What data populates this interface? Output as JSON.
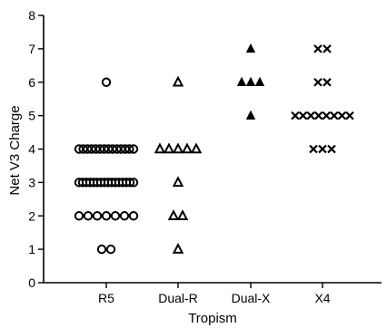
{
  "chart_data": {
    "type": "scatter",
    "title": "",
    "xlabel": "Tropism",
    "ylabel": "Net V3 Charge",
    "ylim": [
      0,
      8
    ],
    "yticks": [
      "0",
      "1",
      "2",
      "3",
      "4",
      "5",
      "6",
      "7",
      "8"
    ],
    "categories": [
      "R5",
      "Dual-R",
      "Dual-X",
      "X4"
    ],
    "grid": false,
    "legend": "none",
    "color": "#000000",
    "series": [
      {
        "category": "R5",
        "marker": "open-circle",
        "points": [
          {
            "y": 6,
            "count": 1
          },
          {
            "y": 4,
            "count": 14
          },
          {
            "y": 3,
            "count": 16
          },
          {
            "y": 2,
            "count": 7
          },
          {
            "y": 1,
            "count": 2
          }
        ]
      },
      {
        "category": "Dual-R",
        "marker": "open-triangle",
        "points": [
          {
            "y": 6,
            "count": 1
          },
          {
            "y": 4,
            "count": 5
          },
          {
            "y": 3,
            "count": 1
          },
          {
            "y": 2,
            "count": 2
          },
          {
            "y": 1,
            "count": 1
          }
        ]
      },
      {
        "category": "Dual-X",
        "marker": "filled-triangle",
        "points": [
          {
            "y": 7,
            "count": 1
          },
          {
            "y": 6,
            "count": 3
          },
          {
            "y": 5,
            "count": 1
          }
        ]
      },
      {
        "category": "X4",
        "marker": "cross",
        "points": [
          {
            "y": 7,
            "count": 2
          },
          {
            "y": 6,
            "count": 2
          },
          {
            "y": 5,
            "count": 8
          },
          {
            "y": 4,
            "count": 3
          }
        ]
      }
    ]
  }
}
